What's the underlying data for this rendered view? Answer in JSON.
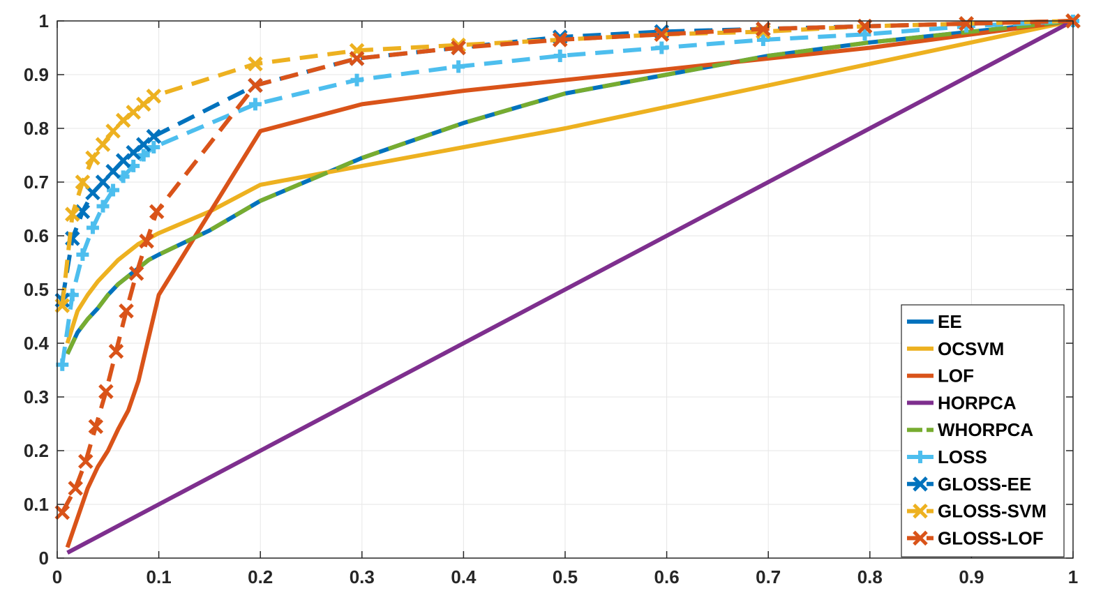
{
  "chart_data": {
    "type": "line",
    "title": "",
    "xlabel": "",
    "ylabel": "",
    "xlim": [
      0,
      1
    ],
    "ylim": [
      0,
      1
    ],
    "grid": true,
    "legend_position": "bottom-right",
    "xticks": [
      "0",
      "0.1",
      "0.2",
      "0.3",
      "0.4",
      "0.5",
      "0.6",
      "0.7",
      "0.8",
      "0.9",
      "1"
    ],
    "yticks": [
      "0",
      "0.1",
      "0.2",
      "0.3",
      "0.4",
      "0.5",
      "0.6",
      "0.7",
      "0.8",
      "0.9",
      "1"
    ],
    "series": [
      {
        "name": "EE",
        "color": "#0072BD",
        "style": "solid",
        "marker": "none",
        "x": [
          0.01,
          0.02,
          0.03,
          0.04,
          0.05,
          0.06,
          0.07,
          0.08,
          0.09,
          0.1,
          0.15,
          0.2,
          0.3,
          0.4,
          0.5,
          0.6,
          0.7,
          0.8,
          0.9,
          1.0
        ],
        "y": [
          0.38,
          0.42,
          0.445,
          0.465,
          0.49,
          0.51,
          0.525,
          0.54,
          0.555,
          0.565,
          0.61,
          0.665,
          0.745,
          0.81,
          0.865,
          0.9,
          0.935,
          0.96,
          0.98,
          1.0
        ]
      },
      {
        "name": "OCSVM",
        "color": "#EDB120",
        "style": "solid",
        "marker": "none",
        "x": [
          0.01,
          0.02,
          0.03,
          0.04,
          0.05,
          0.06,
          0.07,
          0.08,
          0.09,
          0.1,
          0.15,
          0.2,
          0.3,
          0.4,
          0.5,
          0.6,
          0.7,
          0.8,
          0.9,
          1.0
        ],
        "y": [
          0.4,
          0.46,
          0.49,
          0.515,
          0.535,
          0.555,
          0.57,
          0.585,
          0.595,
          0.605,
          0.645,
          0.695,
          0.73,
          0.765,
          0.8,
          0.84,
          0.88,
          0.92,
          0.96,
          1.0
        ]
      },
      {
        "name": "LOF",
        "color": "#D95319",
        "style": "solid",
        "marker": "none",
        "x": [
          0.01,
          0.03,
          0.04,
          0.05,
          0.06,
          0.07,
          0.08,
          0.09,
          0.1,
          0.2,
          0.3,
          0.4,
          0.5,
          0.6,
          0.7,
          0.8,
          0.9,
          1.0
        ],
        "y": [
          0.02,
          0.13,
          0.17,
          0.2,
          0.24,
          0.275,
          0.33,
          0.41,
          0.49,
          0.795,
          0.845,
          0.87,
          0.89,
          0.91,
          0.93,
          0.95,
          0.975,
          1.0
        ]
      },
      {
        "name": "HORPCA",
        "color": "#7E2F8E",
        "style": "solid",
        "marker": "none",
        "x": [
          0.01,
          1.0
        ],
        "y": [
          0.01,
          1.0
        ]
      },
      {
        "name": "WHORPCA",
        "color": "#77AC30",
        "style": "dashed",
        "marker": "none",
        "x": [
          0.01,
          0.02,
          0.03,
          0.04,
          0.05,
          0.06,
          0.07,
          0.08,
          0.09,
          0.1,
          0.15,
          0.2,
          0.3,
          0.4,
          0.5,
          0.6,
          0.7,
          0.8,
          0.9,
          1.0
        ],
        "y": [
          0.38,
          0.42,
          0.445,
          0.465,
          0.49,
          0.51,
          0.525,
          0.54,
          0.555,
          0.565,
          0.61,
          0.665,
          0.745,
          0.81,
          0.865,
          0.9,
          0.935,
          0.96,
          0.98,
          1.0
        ]
      },
      {
        "name": "LOSS",
        "color": "#4DBEEE",
        "style": "dashed",
        "marker": "plus",
        "x": [
          0.005,
          0.015,
          0.025,
          0.035,
          0.045,
          0.055,
          0.065,
          0.075,
          0.085,
          0.095,
          0.195,
          0.295,
          0.395,
          0.495,
          0.595,
          0.695,
          0.795,
          0.895,
          1.0
        ],
        "y": [
          0.36,
          0.49,
          0.565,
          0.615,
          0.655,
          0.685,
          0.71,
          0.73,
          0.75,
          0.765,
          0.845,
          0.89,
          0.915,
          0.935,
          0.95,
          0.965,
          0.975,
          0.99,
          1.0
        ]
      },
      {
        "name": "GLOSS-EE",
        "color": "#0072BD",
        "style": "dashed",
        "marker": "x",
        "x": [
          0.005,
          0.015,
          0.025,
          0.035,
          0.045,
          0.055,
          0.065,
          0.075,
          0.085,
          0.095,
          0.195,
          0.295,
          0.395,
          0.495,
          0.595,
          0.695,
          0.795,
          0.895,
          1.0
        ],
        "y": [
          0.48,
          0.595,
          0.645,
          0.68,
          0.7,
          0.72,
          0.74,
          0.755,
          0.77,
          0.785,
          0.88,
          0.93,
          0.95,
          0.97,
          0.98,
          0.985,
          0.99,
          0.995,
          1.0
        ]
      },
      {
        "name": "GLOSS-SVM",
        "color": "#EDB120",
        "style": "dashed",
        "marker": "x",
        "x": [
          0.005,
          0.015,
          0.025,
          0.035,
          0.045,
          0.055,
          0.065,
          0.075,
          0.085,
          0.095,
          0.195,
          0.295,
          0.395,
          0.495,
          0.595,
          0.695,
          0.795,
          0.895,
          1.0
        ],
        "y": [
          0.47,
          0.64,
          0.7,
          0.745,
          0.77,
          0.795,
          0.815,
          0.83,
          0.845,
          0.86,
          0.92,
          0.945,
          0.955,
          0.965,
          0.975,
          0.98,
          0.99,
          0.995,
          1.0
        ]
      },
      {
        "name": "GLOSS-LOF",
        "color": "#D95319",
        "style": "dashed",
        "marker": "x",
        "x": [
          0.005,
          0.018,
          0.028,
          0.038,
          0.048,
          0.058,
          0.068,
          0.078,
          0.088,
          0.098,
          0.195,
          0.295,
          0.395,
          0.495,
          0.595,
          0.695,
          0.795,
          0.895,
          1.0
        ],
        "y": [
          0.085,
          0.13,
          0.18,
          0.245,
          0.31,
          0.385,
          0.46,
          0.53,
          0.59,
          0.645,
          0.88,
          0.93,
          0.95,
          0.965,
          0.975,
          0.985,
          0.99,
          0.995,
          1.0
        ]
      }
    ]
  }
}
